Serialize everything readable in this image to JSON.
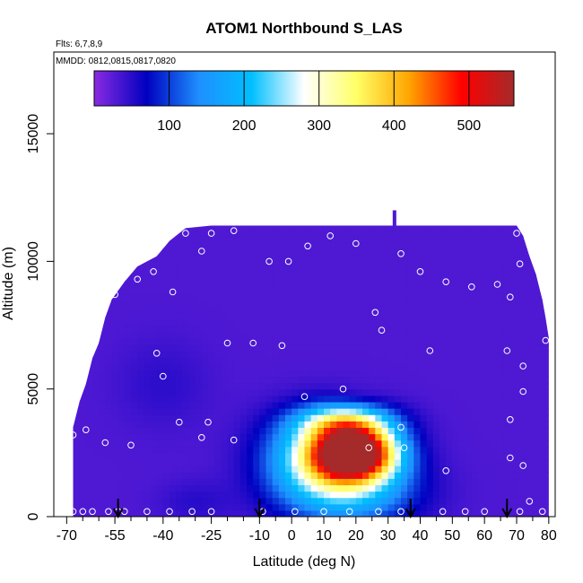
{
  "chart_data": {
    "type": "heatmap",
    "title": "ATOM1 Northbound S_LAS",
    "flights_label": "Flts: 6,7,8,9",
    "dates_label": "MMDD: 0812,0815,0817,0820",
    "xlabel": "Latitude (deg N)",
    "ylabel": "Altitude (m)",
    "xlim": [
      -70,
      80
    ],
    "ylim": [
      0,
      17500
    ],
    "x_ticks": [
      -70,
      -55,
      -40,
      -25,
      -10,
      0,
      10,
      20,
      30,
      40,
      50,
      60,
      70,
      80
    ],
    "x_minor_ticks": [
      -65,
      -60,
      -50,
      -45,
      -35,
      -30,
      -20,
      -15,
      -5,
      5,
      15,
      25,
      35,
      45,
      55,
      65,
      75
    ],
    "y_ticks": [
      0,
      5000,
      10000,
      15000
    ],
    "colorbar": {
      "ticks": [
        100,
        200,
        300,
        400,
        500
      ],
      "range": [
        0,
        560
      ],
      "colors": [
        "#8a2be2",
        "#0000c0",
        "#1e90ff",
        "#00bfff",
        "#ffffff",
        "#ffff66",
        "#ffa500",
        "#ff0000",
        "#a52a2a"
      ]
    },
    "background_value": 30,
    "envelope": [
      [
        -68,
        3500
      ],
      [
        -66,
        4500
      ],
      [
        -64,
        5200
      ],
      [
        -62,
        6200
      ],
      [
        -60,
        6800
      ],
      [
        -58,
        7800
      ],
      [
        -56,
        8500
      ],
      [
        -52,
        9200
      ],
      [
        -48,
        9800
      ],
      [
        -42,
        10200
      ],
      [
        -38,
        10800
      ],
      [
        -33,
        11300
      ],
      [
        -25,
        11400
      ],
      [
        70,
        11400
      ],
      [
        72,
        11000
      ],
      [
        74,
        10200
      ],
      [
        76,
        9500
      ],
      [
        78,
        8500
      ],
      [
        79,
        7800
      ],
      [
        80,
        7000
      ],
      [
        80,
        0
      ],
      [
        -68,
        0
      ]
    ],
    "spike": {
      "x": 32,
      "y": [
        11400,
        12000
      ]
    },
    "features": [
      {
        "x": 20,
        "y": 2500,
        "sx": 9,
        "sy": 700,
        "amp": 520
      },
      {
        "x": 10,
        "y": 2400,
        "sx": 12,
        "sy": 1100,
        "amp": 230
      },
      {
        "x": 18,
        "y": 1000,
        "sx": 14,
        "sy": 900,
        "amp": 150
      },
      {
        "x": 17,
        "y": 3700,
        "sx": 10,
        "sy": 500,
        "amp": 210
      },
      {
        "x": 20,
        "y": 4700,
        "sx": 6,
        "sy": 300,
        "amp": -12
      },
      {
        "x": -40,
        "y": 5200,
        "sx": 10,
        "sy": 1200,
        "amp": 18
      },
      {
        "x": -30,
        "y": 600,
        "sx": 8,
        "sy": 600,
        "amp": 20
      }
    ],
    "samples": [
      [
        -68,
        200
      ],
      [
        -65,
        200
      ],
      [
        -62,
        200
      ],
      [
        -57,
        200
      ],
      [
        -54,
        200
      ],
      [
        -52,
        200
      ],
      [
        -45,
        200
      ],
      [
        -38,
        200
      ],
      [
        -31,
        200
      ],
      [
        -25,
        200
      ],
      [
        -9,
        200
      ],
      [
        1,
        200
      ],
      [
        10,
        200
      ],
      [
        18,
        200
      ],
      [
        27,
        200
      ],
      [
        34,
        200
      ],
      [
        47,
        200
      ],
      [
        54,
        200
      ],
      [
        60,
        200
      ],
      [
        71,
        200
      ],
      [
        78,
        200
      ],
      [
        -68,
        3200
      ],
      [
        -64,
        3400
      ],
      [
        -58,
        2900
      ],
      [
        -50,
        2800
      ],
      [
        -42,
        6400
      ],
      [
        -40,
        5500
      ],
      [
        -35,
        3700
      ],
      [
        -28,
        3100
      ],
      [
        -26,
        3700
      ],
      [
        -20,
        6800
      ],
      [
        -18,
        3000
      ],
      [
        -12,
        6800
      ],
      [
        -3,
        6700
      ],
      [
        4,
        4700
      ],
      [
        16,
        5000
      ],
      [
        24,
        2700
      ],
      [
        34,
        3500
      ],
      [
        35,
        2700
      ],
      [
        43,
        6500
      ],
      [
        48,
        1800
      ],
      [
        -55,
        8700
      ],
      [
        -48,
        9300
      ],
      [
        -43,
        9600
      ],
      [
        -37,
        8800
      ],
      [
        -33,
        11100
      ],
      [
        -28,
        10400
      ],
      [
        -25,
        11100
      ],
      [
        -18,
        11200
      ],
      [
        -7,
        10000
      ],
      [
        -1,
        10000
      ],
      [
        5,
        10600
      ],
      [
        12,
        11000
      ],
      [
        20,
        10700
      ],
      [
        26,
        8000
      ],
      [
        28,
        7300
      ],
      [
        34,
        10300
      ],
      [
        40,
        9600
      ],
      [
        48,
        9200
      ],
      [
        56,
        9000
      ],
      [
        64,
        9100
      ],
      [
        68,
        8600
      ],
      [
        70,
        11100
      ],
      [
        71,
        9900
      ],
      [
        72,
        5900
      ],
      [
        72,
        4900
      ],
      [
        68,
        3800
      ],
      [
        68,
        2300
      ],
      [
        72,
        2000
      ],
      [
        74,
        600
      ],
      [
        67,
        6500
      ],
      [
        79,
        6900
      ]
    ],
    "flight_arrows": [
      -54,
      -10,
      37,
      67
    ]
  }
}
